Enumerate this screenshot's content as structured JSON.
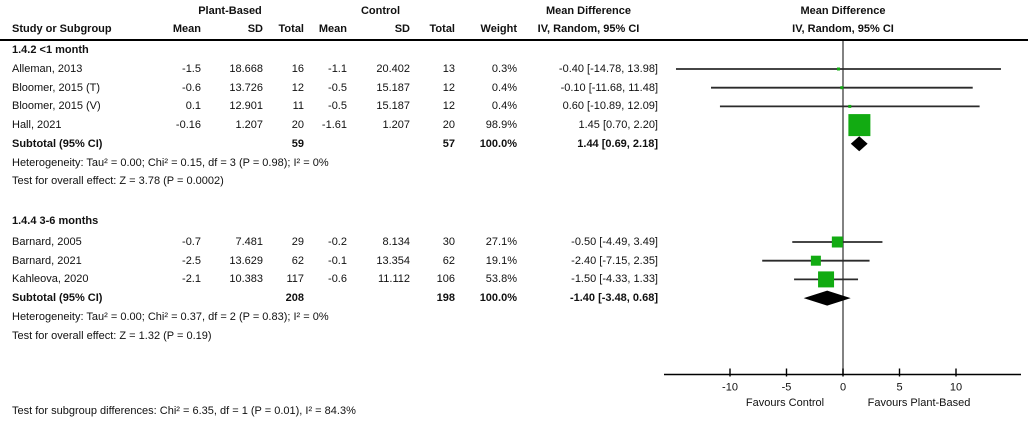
{
  "figure": {
    "group1": "Plant-Based",
    "group2": "Control",
    "md_text_header": "Mean Difference",
    "md_plot_header": "Mean Difference",
    "columns": [
      "Study or Subgroup",
      "Mean",
      "SD",
      "Total",
      "Mean",
      "SD",
      "Total",
      "Weight",
      "IV, Random, 95% CI"
    ],
    "plot_column_subheader": "IV, Random, 95% CI"
  },
  "chart_data": {
    "type": "forest",
    "effect_measure": "Mean Difference",
    "method": "IV, Random, 95% CI",
    "axis": {
      "ticks": [
        -10,
        -5,
        0,
        5,
        10
      ],
      "range": [
        -16,
        16
      ],
      "label_left": "Favours Control",
      "label_right": "Favours Plant-Based"
    },
    "colors": {
      "marker": "#12ab12",
      "diamond": "#000000",
      "ci_line": "#2b2b2b",
      "zero_line": "#4d4d4d",
      "axis": "#000000"
    },
    "subgroups": [
      {
        "label": "1.4.2 <1 month",
        "studies": [
          {
            "name": "Alleman, 2013",
            "mean1": "-1.5",
            "sd1": "18.668",
            "total1": "16",
            "mean2": "-1.1",
            "sd2": "20.402",
            "total2": "13",
            "weight": "0.3%",
            "weight_pct": 0.3,
            "ci_text": "-0.40 [-14.78, 13.98]",
            "md": -0.4,
            "lo": -14.78,
            "hi": 13.98
          },
          {
            "name": "Bloomer, 2015 (T)",
            "mean1": "-0.6",
            "sd1": "13.726",
            "total1": "12",
            "mean2": "-0.5",
            "sd2": "15.187",
            "total2": "12",
            "weight": "0.4%",
            "weight_pct": 0.4,
            "ci_text": "-0.10 [-11.68, 11.48]",
            "md": -0.1,
            "lo": -11.68,
            "hi": 11.48
          },
          {
            "name": "Bloomer, 2015 (V)",
            "mean1": "0.1",
            "sd1": "12.901",
            "total1": "11",
            "mean2": "-0.5",
            "sd2": "15.187",
            "total2": "12",
            "weight": "0.4%",
            "weight_pct": 0.4,
            "ci_text": "0.60 [-10.89, 12.09]",
            "md": 0.6,
            "lo": -10.89,
            "hi": 12.09
          },
          {
            "name": "Hall, 2021",
            "mean1": "-0.16",
            "sd1": "1.207",
            "total1": "20",
            "mean2": "-1.61",
            "sd2": "1.207",
            "total2": "20",
            "weight": "98.9%",
            "weight_pct": 98.9,
            "ci_text": "1.45 [0.70, 2.20]",
            "md": 1.45,
            "lo": 0.7,
            "hi": 2.2
          }
        ],
        "subtotal": {
          "label": "Subtotal (95% CI)",
          "total1": "59",
          "total2": "57",
          "weight": "100.0%",
          "ci_text": "1.44 [0.69, 2.18]",
          "md": 1.44,
          "lo": 0.69,
          "hi": 2.18
        },
        "heterogeneity": "Heterogeneity: Tau² = 0.00; Chi² = 0.15, df = 3 (P = 0.98); I² = 0%",
        "overall_effect": "Test for overall effect: Z = 3.78 (P = 0.0002)"
      },
      {
        "label": "1.4.4 3-6 months",
        "studies": [
          {
            "name": "Barnard, 2005",
            "mean1": "-0.7",
            "sd1": "7.481",
            "total1": "29",
            "mean2": "-0.2",
            "sd2": "8.134",
            "total2": "30",
            "weight": "27.1%",
            "weight_pct": 27.1,
            "ci_text": "-0.50 [-4.49, 3.49]",
            "md": -0.5,
            "lo": -4.49,
            "hi": 3.49
          },
          {
            "name": "Barnard, 2021",
            "mean1": "-2.5",
            "sd1": "13.629",
            "total1": "62",
            "mean2": "-0.1",
            "sd2": "13.354",
            "total2": "62",
            "weight": "19.1%",
            "weight_pct": 19.1,
            "ci_text": "-2.40 [-7.15, 2.35]",
            "md": -2.4,
            "lo": -7.15,
            "hi": 2.35
          },
          {
            "name": "Kahleova, 2020",
            "mean1": "-2.1",
            "sd1": "10.383",
            "total1": "117",
            "mean2": "-0.6",
            "sd2": "11.112",
            "total2": "106",
            "weight": "53.8%",
            "weight_pct": 53.8,
            "ci_text": "-1.50 [-4.33, 1.33]",
            "md": -1.5,
            "lo": -4.33,
            "hi": 1.33
          }
        ],
        "subtotal": {
          "label": "Subtotal (95% CI)",
          "total1": "208",
          "total2": "198",
          "weight": "100.0%",
          "ci_text": "-1.40 [-3.48, 0.68]",
          "md": -1.4,
          "lo": -3.48,
          "hi": 0.68
        },
        "heterogeneity": "Heterogeneity: Tau² = 0.00; Chi² = 0.37, df = 2 (P = 0.83); I² = 0%",
        "overall_effect": "Test for overall effect: Z = 1.32 (P = 0.19)"
      }
    ],
    "footer": "Test for subgroup differences: Chi² = 6.35, df = 1 (P = 0.01), I² = 84.3%"
  }
}
